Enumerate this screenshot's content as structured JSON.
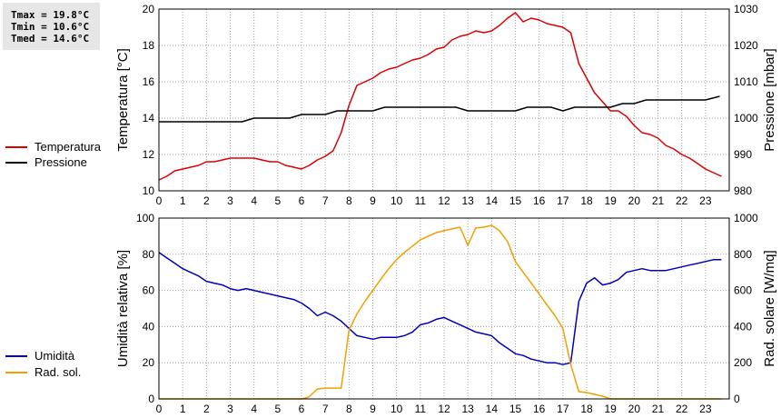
{
  "stats": {
    "tmax": "Tmax = 19.8°C",
    "tmin": "Tmin = 10.6°C",
    "tmed": "Tmed = 14.6°C"
  },
  "colors": {
    "temperature": "#dd0000",
    "pressure": "#000000",
    "humidity": "#0000bb",
    "radiation": "#f0a000",
    "grid": "#a0a0a0"
  },
  "chart_data": [
    {
      "type": "line",
      "id": "top",
      "xlim": [
        0,
        24
      ],
      "xticks": [
        "0",
        "1",
        "2",
        "3",
        "4",
        "5",
        "6",
        "7",
        "8",
        "9",
        "10",
        "11",
        "12",
        "13",
        "14",
        "15",
        "16",
        "17",
        "18",
        "19",
        "20",
        "21",
        "22",
        "23"
      ],
      "grid": true,
      "y_left": {
        "label": "Temperatura [°C]",
        "lim": [
          10,
          20
        ],
        "ticks": [
          "10",
          "12",
          "14",
          "16",
          "18",
          "20"
        ]
      },
      "y_right": {
        "label": "Pressione [mbar]",
        "lim": [
          980,
          1030
        ],
        "ticks": [
          "980",
          "990",
          "1000",
          "1010",
          "1020",
          "1030"
        ]
      },
      "legend_position": "left",
      "series": [
        {
          "name": "Temperatura",
          "axis": "left",
          "color": "#dd0000",
          "x": [
            0,
            0.33,
            0.67,
            1,
            1.33,
            1.67,
            2,
            2.33,
            2.67,
            3,
            3.33,
            3.67,
            4,
            4.33,
            4.67,
            5,
            5.33,
            5.67,
            6,
            6.33,
            6.67,
            7,
            7.33,
            7.67,
            8,
            8.33,
            8.67,
            9,
            9.33,
            9.67,
            10,
            10.33,
            10.67,
            11,
            11.33,
            11.67,
            12,
            12.33,
            12.67,
            13,
            13.33,
            13.67,
            14,
            14.33,
            14.67,
            15,
            15.33,
            15.67,
            16,
            16.33,
            16.67,
            17,
            17.33,
            17.67,
            18,
            18.33,
            18.67,
            19,
            19.33,
            19.67,
            20,
            20.33,
            20.67,
            21,
            21.33,
            21.67,
            22,
            22.33,
            22.67,
            23,
            23.33,
            23.67
          ],
          "y": [
            10.6,
            10.8,
            11.1,
            11.2,
            11.3,
            11.4,
            11.6,
            11.6,
            11.7,
            11.8,
            11.8,
            11.8,
            11.8,
            11.7,
            11.6,
            11.6,
            11.4,
            11.3,
            11.2,
            11.4,
            11.7,
            11.9,
            12.2,
            13.2,
            14.7,
            15.8,
            16.0,
            16.2,
            16.5,
            16.7,
            16.8,
            17.0,
            17.2,
            17.3,
            17.5,
            17.8,
            17.9,
            18.3,
            18.5,
            18.6,
            18.8,
            18.7,
            18.8,
            19.1,
            19.5,
            19.8,
            19.3,
            19.5,
            19.4,
            19.2,
            19.1,
            19.0,
            18.7,
            17.0,
            16.2,
            15.4,
            14.9,
            14.4,
            14.4,
            14.1,
            13.6,
            13.2,
            13.1,
            12.9,
            12.5,
            12.3,
            12.0,
            11.8,
            11.5,
            11.2,
            11.0,
            10.8
          ]
        },
        {
          "name": "Pressione",
          "axis": "right",
          "color": "#000000",
          "x": [
            0,
            1,
            2,
            3,
            3.5,
            4,
            5,
            5.5,
            6,
            7,
            7.5,
            8,
            9,
            9.5,
            10,
            11,
            12,
            12.5,
            13,
            14,
            15,
            15.5,
            16,
            16.5,
            17,
            17.5,
            18,
            18.5,
            19,
            19.5,
            20,
            20.5,
            21,
            22,
            23,
            23.6
          ],
          "y": [
            999,
            999,
            999,
            999,
            999,
            1000,
            1000,
            1000,
            1001,
            1001,
            1002,
            1002,
            1002,
            1003,
            1003,
            1003,
            1003,
            1003,
            1002,
            1002,
            1002,
            1003,
            1003,
            1003,
            1002,
            1003,
            1003,
            1003,
            1003,
            1004,
            1004,
            1005,
            1005,
            1005,
            1005,
            1006
          ]
        }
      ]
    },
    {
      "type": "line",
      "id": "bottom",
      "xlim": [
        0,
        24
      ],
      "xticks": [
        "0",
        "1",
        "2",
        "3",
        "4",
        "5",
        "6",
        "7",
        "8",
        "9",
        "10",
        "11",
        "12",
        "13",
        "14",
        "15",
        "16",
        "17",
        "18",
        "19",
        "20",
        "21",
        "22",
        "23"
      ],
      "grid": true,
      "y_left": {
        "label": "Umidità relativa [%]",
        "lim": [
          0,
          100
        ],
        "ticks": [
          "0",
          "20",
          "40",
          "60",
          "80",
          "100"
        ]
      },
      "y_right": {
        "label": "Rad. solare [W/mq]",
        "lim": [
          0,
          1000
        ],
        "ticks": [
          "0",
          "200",
          "400",
          "600",
          "800",
          "1000"
        ]
      },
      "legend_position": "left",
      "series": [
        {
          "name": "Umidità",
          "axis": "left",
          "color": "#0000bb",
          "x": [
            0,
            0.33,
            0.67,
            1,
            1.33,
            1.67,
            2,
            2.33,
            2.67,
            3,
            3.33,
            3.67,
            4,
            4.33,
            4.67,
            5,
            5.33,
            5.67,
            6,
            6.33,
            6.67,
            7,
            7.33,
            7.67,
            8,
            8.33,
            8.67,
            9,
            9.33,
            9.67,
            10,
            10.33,
            10.67,
            11,
            11.33,
            11.67,
            12,
            12.33,
            12.67,
            13,
            13.33,
            13.67,
            14,
            14.33,
            14.67,
            15,
            15.33,
            15.67,
            16,
            16.33,
            16.67,
            17,
            17.33,
            17.67,
            18,
            18.33,
            18.67,
            19,
            19.33,
            19.67,
            20,
            20.33,
            20.67,
            21,
            21.33,
            21.67,
            22,
            22.33,
            22.67,
            23,
            23.33,
            23.67
          ],
          "y": [
            81,
            78,
            75,
            72,
            70,
            68,
            65,
            64,
            63,
            61,
            60,
            61,
            60,
            59,
            58,
            57,
            56,
            55,
            53,
            50,
            46,
            48,
            46,
            43,
            39,
            35,
            34,
            33,
            34,
            34,
            34,
            35,
            37,
            41,
            42,
            44,
            45,
            43,
            41,
            39,
            37,
            36,
            35,
            31,
            28,
            25,
            24,
            22,
            21,
            20,
            20,
            19,
            20,
            54,
            64,
            67,
            63,
            64,
            66,
            70,
            71,
            72,
            71,
            71,
            71,
            72,
            73,
            74,
            75,
            76,
            77,
            77
          ]
        },
        {
          "name": "Rad. sol.",
          "axis": "right",
          "color": "#f0a000",
          "x": [
            0,
            1,
            2,
            3,
            4,
            5,
            6,
            6.3,
            6.67,
            7,
            7.33,
            7.67,
            8,
            8.33,
            8.67,
            9,
            9.33,
            9.67,
            10,
            10.33,
            10.67,
            11,
            11.33,
            11.67,
            12,
            12.33,
            12.67,
            13,
            13.33,
            13.67,
            14,
            14.33,
            14.67,
            15,
            15.33,
            15.67,
            16,
            16.33,
            16.67,
            17,
            17.33,
            17.67,
            18,
            18.33,
            18.67,
            19,
            20,
            21,
            22,
            23,
            23.7
          ],
          "y": [
            0,
            0,
            0,
            0,
            0,
            0,
            0,
            10,
            55,
            60,
            60,
            60,
            380,
            470,
            540,
            600,
            660,
            720,
            770,
            810,
            845,
            880,
            900,
            920,
            930,
            940,
            950,
            850,
            945,
            950,
            960,
            930,
            870,
            760,
            700,
            640,
            580,
            520,
            460,
            390,
            190,
            40,
            35,
            25,
            15,
            0,
            0,
            0,
            0,
            0,
            0
          ]
        }
      ]
    }
  ]
}
